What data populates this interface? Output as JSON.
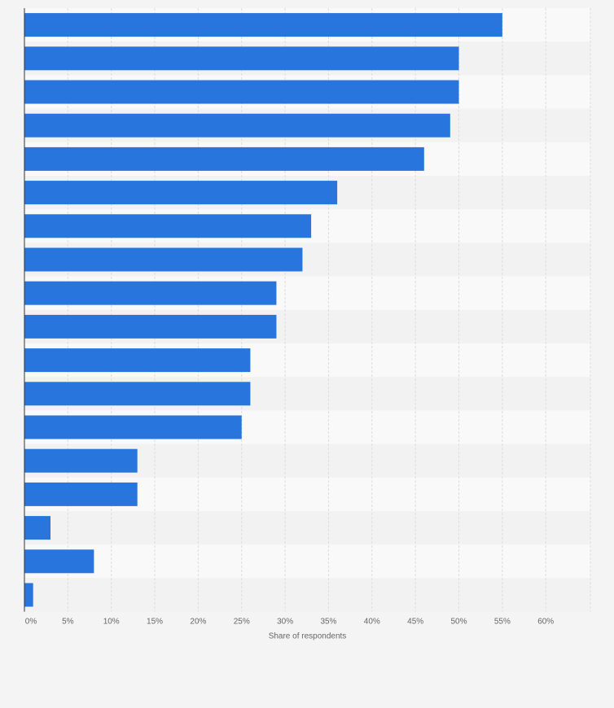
{
  "chart_data": {
    "type": "bar",
    "orientation": "horizontal",
    "categories": [
      "",
      "",
      "",
      "",
      "",
      "",
      "",
      "",
      "",
      "",
      "",
      "",
      "",
      "",
      "",
      "",
      "",
      ""
    ],
    "values": [
      55,
      50,
      50,
      49,
      46,
      36,
      33,
      32,
      29,
      29,
      26,
      26,
      25,
      13,
      13,
      3,
      8,
      1
    ],
    "xlabel": "Share of respondents",
    "xlim": [
      0,
      65
    ],
    "xticks": [
      0,
      5,
      10,
      15,
      20,
      25,
      30,
      35,
      40,
      45,
      50,
      55,
      60
    ],
    "xtick_labels": [
      "0%",
      "5%",
      "10%",
      "15%",
      "20%",
      "25%",
      "30%",
      "35%",
      "40%",
      "45%",
      "50%",
      "55%",
      "60%"
    ],
    "grid": true,
    "bar_color": "#2876dd",
    "legend": "none"
  },
  "colors": {
    "background": "#f4f4f4",
    "plot_band_light": "#f9f9f9",
    "plot_band_dark": "#f2f2f2",
    "gridline": "#dddddd",
    "axis_line": "#333333",
    "tick_text": "#666666"
  }
}
